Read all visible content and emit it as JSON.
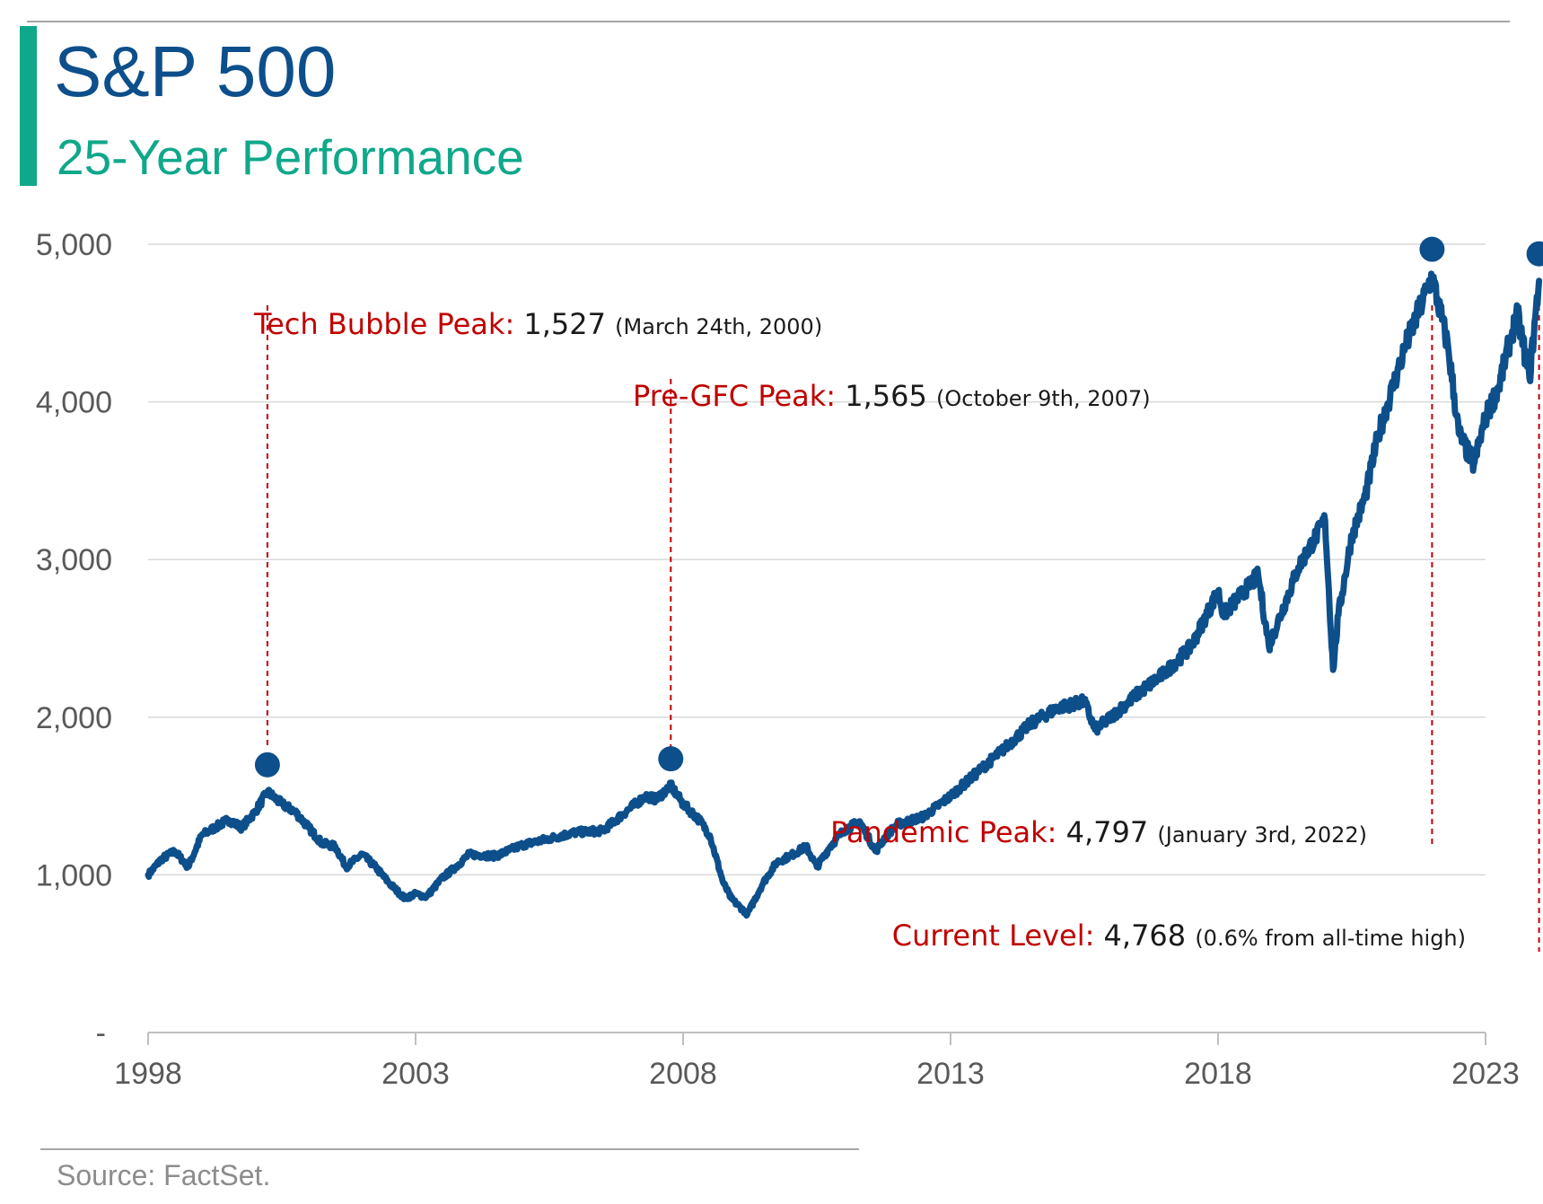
{
  "header": {
    "title": "S&P 500",
    "subtitle": "25-Year Performance"
  },
  "footer": {
    "source": "Source: FactSet."
  },
  "colors": {
    "line": "#0d4f8b",
    "line_highlight": "#a9c4df",
    "accent": "#10a88a",
    "annotation": "#c00000",
    "grid": "#d9d9d9"
  },
  "chart_data": {
    "type": "line",
    "title": "S&P 500",
    "subtitle": "25-Year Performance",
    "xlabel": "",
    "ylabel": "",
    "xlim": [
      1998,
      2023
    ],
    "ylim": [
      0,
      5000
    ],
    "x_ticks": [
      "1998",
      "2003",
      "2008",
      "2013",
      "2018",
      "2023"
    ],
    "y_ticks": [
      "-",
      "1,000",
      "2,000",
      "3,000",
      "4,000",
      "5,000"
    ],
    "grid": "horizontal",
    "series": [
      {
        "x": [
          1998.0,
          1998.25,
          1998.5,
          1998.75,
          1999.0,
          1999.25,
          1999.5,
          1999.75,
          2000.0,
          2000.23,
          2000.5,
          2000.75,
          2001.0,
          2001.25,
          2001.5,
          2001.7,
          2002.0,
          2002.25,
          2002.5,
          2002.8,
          2003.0,
          2003.2,
          2003.5,
          2003.75,
          2004.0,
          2004.5,
          2005.0,
          2005.5,
          2006.0,
          2006.5,
          2007.0,
          2007.3,
          2007.5,
          2007.77,
          2008.0,
          2008.3,
          2008.5,
          2008.75,
          2008.9,
          2009.2,
          2009.5,
          2009.75,
          2010.0,
          2010.3,
          2010.5,
          2010.75,
          2011.0,
          2011.3,
          2011.6,
          2011.8,
          2012.0,
          2012.5,
          2013.0,
          2013.5,
          2014.0,
          2014.5,
          2015.0,
          2015.5,
          2015.7,
          2016.0,
          2016.5,
          2017.0,
          2017.5,
          2018.0,
          2018.1,
          2018.75,
          2018.95,
          2019.5,
          2020.0,
          2020.15,
          2020.25,
          2020.5,
          2020.75,
          2021.0,
          2021.5,
          2022.0,
          2022.3,
          2022.5,
          2022.78,
          2023.0,
          2023.25,
          2023.5,
          2023.6,
          2023.82,
          2024.0
        ],
        "values": [
          1000,
          1100,
          1150,
          1050,
          1250,
          1300,
          1350,
          1300,
          1400,
          1527,
          1450,
          1400,
          1300,
          1200,
          1180,
          1050,
          1130,
          1050,
          950,
          850,
          880,
          860,
          980,
          1050,
          1130,
          1120,
          1190,
          1230,
          1270,
          1280,
          1420,
          1500,
          1480,
          1565,
          1450,
          1350,
          1250,
          950,
          850,
          750,
          950,
          1080,
          1120,
          1180,
          1050,
          1180,
          1280,
          1340,
          1150,
          1250,
          1320,
          1370,
          1500,
          1650,
          1800,
          1960,
          2060,
          2100,
          1920,
          2000,
          2150,
          2280,
          2450,
          2800,
          2650,
          2900,
          2450,
          2950,
          3250,
          2300,
          2650,
          3150,
          3400,
          3800,
          4350,
          4797,
          4350,
          3800,
          3600,
          3900,
          4100,
          4450,
          4550,
          4150,
          4768
        ]
      }
    ],
    "annotations": [
      {
        "x": 2000.23,
        "label": "Tech Bubble Peak:",
        "value": "1,527",
        "note": "(March 24th, 2000)"
      },
      {
        "x": 2007.77,
        "label": "Pre-GFC Peak:",
        "value": "1,565",
        "note": "(October 9th, 2007)"
      },
      {
        "x": 2022.0,
        "label": "Pandemic Peak:",
        "value": "4,797",
        "note": "(January 3rd, 2022)"
      },
      {
        "x": 2024.0,
        "label": "Current Level:",
        "value": "4,768",
        "note": "(0.6% from all-time high)"
      }
    ],
    "legend": "none"
  }
}
